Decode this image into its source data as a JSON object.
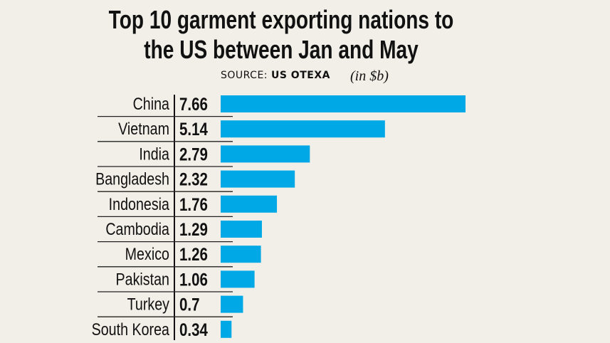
{
  "chart_data": {
    "type": "bar",
    "orientation": "horizontal",
    "title": "Top 10 garment exporting nations to the US between Jan and May",
    "title_lines": [
      "Top 10 garment exporting nations to",
      "the US between Jan and May"
    ],
    "source_label": "SOURCE:",
    "source_name": "US OTEXA",
    "unit": "(in $b)",
    "categories": [
      "China",
      "Vietnam",
      "India",
      "Bangladesh",
      "Indonesia",
      "Cambodia",
      "Mexico",
      "Pakistan",
      "Turkey",
      "South Korea"
    ],
    "values": [
      7.66,
      5.14,
      2.79,
      2.32,
      1.76,
      1.29,
      1.26,
      1.06,
      0.7,
      0.34
    ],
    "value_labels": [
      "7.66",
      "5.14",
      "2.79",
      "2.32",
      "1.76",
      "1.29",
      "1.26",
      "1.06",
      "0.7",
      "0.34"
    ],
    "bar_color": "#00a8e6",
    "grid": false,
    "legend": "none"
  }
}
